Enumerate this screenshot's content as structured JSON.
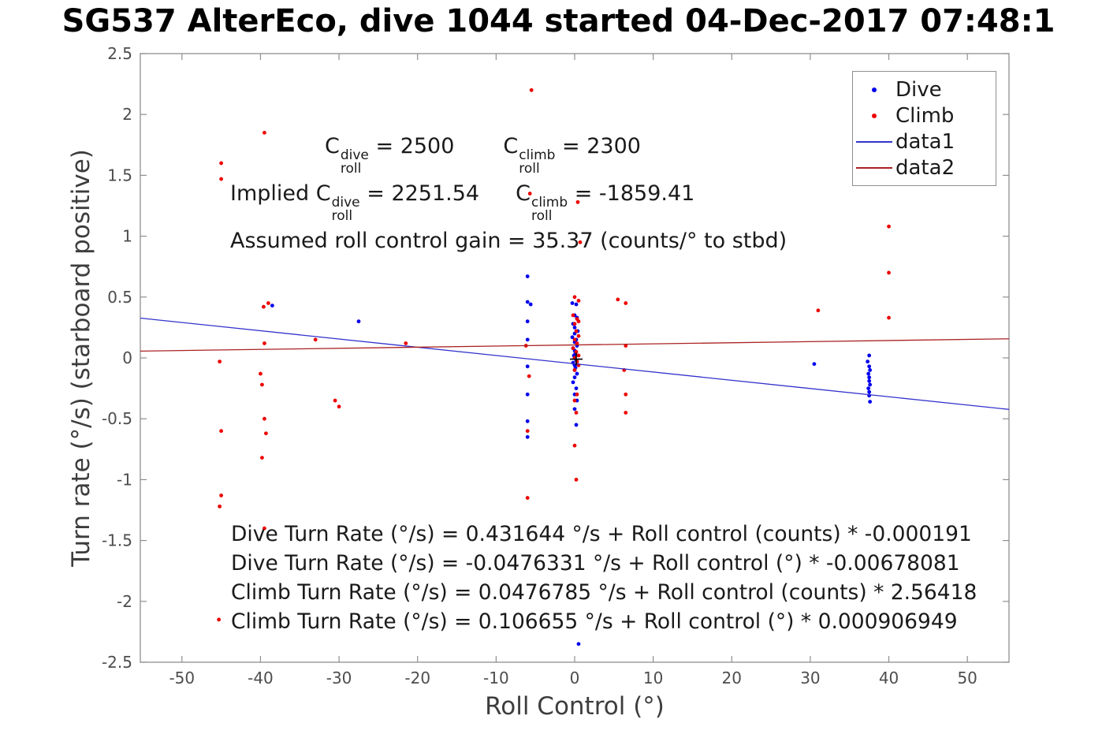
{
  "chart_data": {
    "type": "scatter",
    "title": "SG537 AlterEco, dive 1044 started 04-Dec-2017 07:48:1",
    "xlabel": "Roll Control (°)",
    "ylabel": "Turn rate (°/s) (starboard positive)",
    "xlim": [
      -55.3,
      55.3
    ],
    "ylim": [
      -2.5,
      2.5
    ],
    "xtick_labels": [
      "-50",
      "-40",
      "-30",
      "-20",
      "-10",
      "0",
      "10",
      "20",
      "30",
      "40",
      "50"
    ],
    "ytick_labels": [
      "-2.5",
      "-2",
      "-1.5",
      "-1",
      "-0.5",
      "0",
      "0.5",
      "1",
      "1.5",
      "2",
      "2.5"
    ],
    "grid": false,
    "axis_color": "#8f8f8f",
    "tick_label_color": "#4d4d4d",
    "legend_position": "top-right",
    "series": [
      {
        "name": "Dive",
        "type": "scatter",
        "color": "#0000ee",
        "points": [
          [
            -38.5,
            0.43
          ],
          [
            -27.5,
            0.3
          ],
          [
            -6,
            0.67
          ],
          [
            -6,
            0.46
          ],
          [
            -5.6,
            0.44
          ],
          [
            -6,
            0.3
          ],
          [
            -6,
            0.15
          ],
          [
            -6,
            -0.07
          ],
          [
            -6,
            -0.3
          ],
          [
            -6,
            -0.52
          ],
          [
            -6,
            -0.65
          ],
          [
            -0.3,
            0.45
          ],
          [
            0.2,
            0.44
          ],
          [
            0,
            0.35
          ],
          [
            0.3,
            0.33
          ],
          [
            -0.2,
            0.28
          ],
          [
            0,
            0.25
          ],
          [
            0.4,
            0.22
          ],
          [
            0,
            0.2
          ],
          [
            -0.3,
            0.17
          ],
          [
            0.2,
            0.15
          ],
          [
            0,
            0.13
          ],
          [
            0.3,
            0.1
          ],
          [
            -0.2,
            0.08
          ],
          [
            0,
            0.06
          ],
          [
            0.1,
            0.04
          ],
          [
            -0.1,
            0.02
          ],
          [
            0,
            0.0
          ],
          [
            0.2,
            -0.02
          ],
          [
            -0.2,
            -0.04
          ],
          [
            0,
            -0.06
          ],
          [
            0.1,
            -0.08
          ],
          [
            0,
            -0.1
          ],
          [
            0.3,
            -0.13
          ],
          [
            0,
            -0.16
          ],
          [
            -0.2,
            -0.2
          ],
          [
            0.2,
            -0.25
          ],
          [
            0,
            -0.3
          ],
          [
            0.3,
            -0.35
          ],
          [
            0,
            -0.42
          ],
          [
            0.2,
            -0.55
          ],
          [
            0.5,
            -2.35
          ],
          [
            30.5,
            -0.05
          ],
          [
            37.5,
            0.02
          ],
          [
            37.3,
            -0.03
          ],
          [
            37.5,
            -0.07
          ],
          [
            37.6,
            -0.1
          ],
          [
            37.4,
            -0.13
          ],
          [
            37.5,
            -0.16
          ],
          [
            37.5,
            -0.19
          ],
          [
            37.6,
            -0.22
          ],
          [
            37.4,
            -0.25
          ],
          [
            37.5,
            -0.28
          ],
          [
            37.5,
            -0.31
          ],
          [
            37.6,
            -0.36
          ]
        ]
      },
      {
        "name": "Climb",
        "type": "scatter",
        "color": "#ee0000",
        "points": [
          [
            -45,
            1.6
          ],
          [
            -45,
            1.47
          ],
          [
            -45.2,
            -0.03
          ],
          [
            -45,
            -0.6
          ],
          [
            -45,
            -1.13
          ],
          [
            -45.2,
            -1.22
          ],
          [
            -45.3,
            -2.15
          ],
          [
            -39.5,
            1.85
          ],
          [
            -39,
            0.45
          ],
          [
            -39.6,
            0.42
          ],
          [
            -39.5,
            0.12
          ],
          [
            -40,
            -0.13
          ],
          [
            -39.8,
            -0.22
          ],
          [
            -39.5,
            -0.5
          ],
          [
            -39.3,
            -0.62
          ],
          [
            -39.8,
            -0.82
          ],
          [
            -39.5,
            -1.4
          ],
          [
            -33,
            0.15
          ],
          [
            -30.5,
            -0.35
          ],
          [
            -30,
            -0.4
          ],
          [
            -21.5,
            0.12
          ],
          [
            -5.5,
            2.2
          ],
          [
            -5.7,
            1.35
          ],
          [
            -6.2,
            0.1
          ],
          [
            -5.8,
            -0.15
          ],
          [
            -6,
            -0.6
          ],
          [
            -6,
            -1.15
          ],
          [
            0.4,
            1.28
          ],
          [
            0.7,
            0.95
          ],
          [
            0,
            0.5
          ],
          [
            0.5,
            0.47
          ],
          [
            -0.2,
            0.35
          ],
          [
            0.3,
            0.32
          ],
          [
            0.5,
            0.3
          ],
          [
            0,
            0.28
          ],
          [
            0.2,
            0.22
          ],
          [
            0.5,
            0.18
          ],
          [
            0,
            0.15
          ],
          [
            0.3,
            0.12
          ],
          [
            -0.2,
            0.08
          ],
          [
            0.2,
            0.05
          ],
          [
            0.5,
            0.02
          ],
          [
            0,
            0.0
          ],
          [
            0.3,
            -0.03
          ],
          [
            0.5,
            -0.06
          ],
          [
            0,
            -0.1
          ],
          [
            0.3,
            -0.3
          ],
          [
            0,
            -0.35
          ],
          [
            0.2,
            -0.45
          ],
          [
            0,
            -0.72
          ],
          [
            0.2,
            -1.0
          ],
          [
            5.5,
            0.48
          ],
          [
            6.5,
            0.45
          ],
          [
            6.5,
            0.1
          ],
          [
            6.3,
            -0.1
          ],
          [
            6.5,
            -0.3
          ],
          [
            6.5,
            -0.45
          ],
          [
            31,
            0.39
          ],
          [
            40,
            1.08
          ],
          [
            40,
            0.7
          ],
          [
            40,
            0.33
          ]
        ]
      },
      {
        "name": "data1",
        "type": "line",
        "color": "#3333cc",
        "points": [
          [
            -55.3,
            0.327
          ],
          [
            55.3,
            -0.423
          ]
        ]
      },
      {
        "name": "data2",
        "type": "line",
        "color": "#aa2222",
        "points": [
          [
            -55.3,
            0.056
          ],
          [
            55.3,
            0.157
          ]
        ]
      }
    ],
    "origin_marker": {
      "x": 0.2,
      "y": -0.01,
      "color": "#000000"
    }
  },
  "legend": {
    "items": [
      {
        "label": "Dive",
        "marker": "dot",
        "color": "#0000ee"
      },
      {
        "label": "Climb",
        "marker": "dot",
        "color": "#ee0000"
      },
      {
        "label": "data1",
        "marker": "line",
        "color": "#3333cc"
      },
      {
        "label": "data2",
        "marker": "line",
        "color": "#aa2222"
      }
    ]
  },
  "annotations": {
    "line1": {
      "t1": {
        "base": "C",
        "sup": "dive",
        "sub": "roll"
      },
      "eq1": " = 2500",
      "t2": {
        "base": "C",
        "sup": "climb",
        "sub": "roll"
      },
      "eq2": " = 2300"
    },
    "line2": {
      "prefix": "Implied ",
      "t1": {
        "base": "C",
        "sup": "dive",
        "sub": "roll"
      },
      "eq1": " = 2251.54",
      "t2": {
        "base": "C",
        "sup": "climb",
        "sub": "roll"
      },
      "eq2": " = -1859.41"
    },
    "line3": {
      "text": "Assumed roll control gain = 35.37 (counts/° to stbd)"
    }
  },
  "equations": [
    "Dive Turn Rate (°/s) = 0.431644 °/s + Roll control (counts) * -0.000191",
    "Dive Turn Rate (°/s) = -0.0476331 °/s + Roll control (°) * -0.00678081",
    "Climb Turn Rate (°/s) = 0.0476785 °/s + Roll control (counts) * 2.56418",
    "Climb Turn Rate (°/s) = 0.106655 °/s + Roll control (°) * 0.000906949"
  ]
}
